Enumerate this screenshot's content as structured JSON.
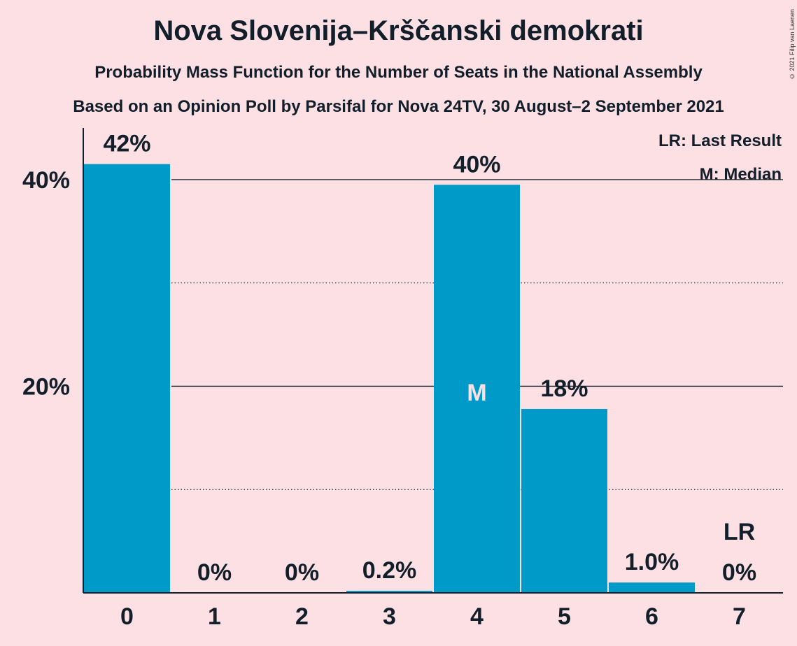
{
  "title": "Nova Slovenija–Krščanski demokrati",
  "subtitle": "Probability Mass Function for the Number of Seats in the National Assembly",
  "subtitle2": "Based on an Opinion Poll by Parsifal for Nova 24TV, 30 August–2 September 2021",
  "copyright": "© 2021 Filip van Laenen",
  "legend": {
    "last_result": "LR: Last Result",
    "median": "M: Median"
  },
  "colors": {
    "background": "#fde0e3",
    "bar": "#009ac8",
    "text": "#121f2b"
  },
  "chart_data": {
    "type": "bar",
    "categories": [
      "0",
      "1",
      "2",
      "3",
      "4",
      "5",
      "6",
      "7"
    ],
    "values": [
      41.5,
      0,
      0,
      0.2,
      39.5,
      17.8,
      1.0,
      0
    ],
    "data_labels": [
      "42%",
      "0%",
      "0%",
      "0.2%",
      "40%",
      "18%",
      "1.0%",
      "0%"
    ],
    "ylim": [
      0,
      45
    ],
    "yticks_labeled": [
      {
        "value": 20,
        "label": "20%"
      },
      {
        "value": 40,
        "label": "40%"
      }
    ],
    "gridlines": [
      {
        "value": 10,
        "style": "dotted"
      },
      {
        "value": 20,
        "style": "solid"
      },
      {
        "value": 30,
        "style": "dotted"
      },
      {
        "value": 40,
        "style": "solid"
      }
    ],
    "median_index": 4,
    "median_label": "M",
    "last_result_index": 7,
    "last_result_label": "LR",
    "xlabel": "",
    "ylabel": ""
  }
}
